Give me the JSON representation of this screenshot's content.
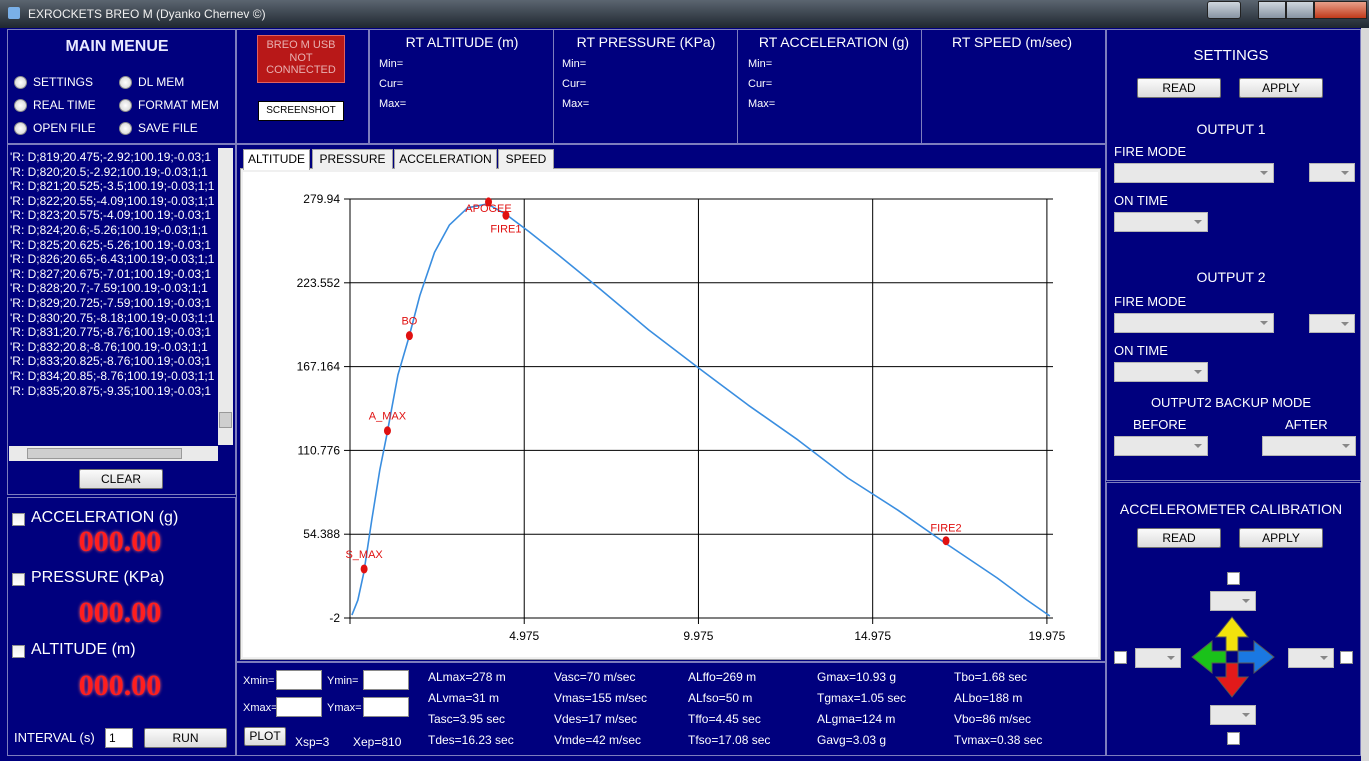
{
  "title_bar": {
    "title": "EXROCKETS BREO M   (Dyanko Chernev ©)"
  },
  "main_menu": {
    "title": "MAIN MENUE",
    "options": [
      "SETTINGS",
      "DL MEM",
      "REAL TIME",
      "FORMAT MEM",
      "OPEN FILE",
      "SAVE FILE"
    ]
  },
  "device": {
    "status": "BREO M USB NOT CONNECTED",
    "screenshot_button": "SCREENSHOT"
  },
  "realtime": [
    {
      "title": "RT ALTITUDE (m)",
      "fields": [
        "Min=",
        "Cur=",
        "Max="
      ]
    },
    {
      "title": "RT PRESSURE (KPa)",
      "fields": [
        "Min=",
        "Cur=",
        "Max="
      ]
    },
    {
      "title": "RT ACCELERATION (g)",
      "fields": [
        "Min=",
        "Cur=",
        "Max="
      ]
    },
    {
      "title": "RT SPEED (m/sec)"
    }
  ],
  "log": {
    "lines": [
      "'R: D;819;20.475;-2.92;100.19;-0.03;1",
      "'R: D;820;20.5;-2.92;100.19;-0.03;1;1",
      "'R: D;821;20.525;-3.5;100.19;-0.03;1;1",
      "'R: D;822;20.55;-4.09;100.19;-0.03;1;1",
      "'R: D;823;20.575;-4.09;100.19;-0.03;1",
      "'R: D;824;20.6;-5.26;100.19;-0.03;1;1",
      "'R: D;825;20.625;-5.26;100.19;-0.03;1",
      "'R: D;826;20.65;-6.43;100.19;-0.03;1;1",
      "'R: D;827;20.675;-7.01;100.19;-0.03;1",
      "'R: D;828;20.7;-7.59;100.19;-0.03;1;1",
      "'R: D;829;20.725;-7.59;100.19;-0.03;1",
      "'R: D;830;20.75;-8.18;100.19;-0.03;1;1",
      "'R: D;831;20.775;-8.76;100.19;-0.03;1",
      "'R: D;832;20.8;-8.76;100.19;-0.03;1;1",
      "'R: D;833;20.825;-8.76;100.19;-0.03;1",
      "'R: D;834;20.85;-8.76;100.19;-0.03;1;1",
      "'R: D;835;20.875;-9.35;100.19;-0.03;1"
    ],
    "clear_button": "CLEAR"
  },
  "gauges": [
    {
      "label": "ACCELERATION (g)",
      "value": "000.00"
    },
    {
      "label": "PRESSURE (KPa)",
      "value": "000.00"
    },
    {
      "label": "ALTITUDE (m)",
      "value": "000.00"
    }
  ],
  "interval": {
    "label": "INTERVAL (s)",
    "value": 1,
    "run_button": "RUN"
  },
  "tabs": [
    "ALTITUDE",
    "PRESSURE",
    "ACCELERATION",
    "SPEED"
  ],
  "chart_data": {
    "type": "line",
    "color": "#3a8ee0",
    "x": [
      0.03,
      0.2,
      0.37,
      0.6,
      0.83,
      1.03,
      1.35,
      1.66,
      1.98,
      2.4,
      2.83,
      3.35,
      3.92,
      4.43,
      5.12,
      5.97,
      7.12,
      8.55,
      9.98,
      11.4,
      12.83,
      14.26,
      15.69,
      16.97,
      18.55,
      19.4,
      20.06
    ],
    "values": [
      0,
      10,
      28.3,
      64,
      97.6,
      121,
      161.5,
      186.4,
      215,
      244,
      262.5,
      274,
      276.6,
      270,
      257.8,
      242,
      220,
      191.8,
      166.2,
      141.3,
      117.8,
      92.2,
      70.7,
      49.8,
      24.9,
      10.1,
      -0.65
    ],
    "events": [
      {
        "label": "S_MAX",
        "x": 0.38,
        "y": 31
      },
      {
        "label": "A_MAX",
        "x": 1.05,
        "y": 124
      },
      {
        "label": "BO",
        "x": 1.68,
        "y": 188
      },
      {
        "label": "APOGEE",
        "x": 3.95,
        "y": 278
      },
      {
        "label": "FIRE1",
        "x": 4.45,
        "y": 269
      },
      {
        "label": "FIRE2",
        "x": 17.08,
        "y": 50
      }
    ],
    "event_color": "#e01010",
    "xlim": [
      -0.025,
      20.15
    ],
    "xticks": [
      4.975,
      9.975,
      14.975,
      19.975
    ],
    "ylim": [
      -2,
      279.94
    ],
    "yticks": [
      -2,
      54.388,
      110.776,
      167.164,
      223.552,
      279.94
    ],
    "grid": true
  },
  "plot_controls": {
    "xmin_label": "Xmin=",
    "ymin_label": "Ymin=",
    "xmax_label": "Xmax=",
    "ymax_label": "Ymax=",
    "plot_button": "PLOT",
    "xsp": "Xsp=3",
    "xep": "Xep=810"
  },
  "stats": [
    [
      "ALmax=278 m",
      "ALvma=31 m",
      "Tasc=3.95 sec",
      "Tdes=16.23 sec"
    ],
    [
      "Vasc=70 m/sec",
      "Vmas=155 m/sec",
      "Vdes=17 m/sec",
      "Vmde=42 m/sec"
    ],
    [
      "ALffo=269 m",
      "ALfso=50 m",
      "Tffo=4.45 sec",
      "Tfso=17.08 sec"
    ],
    [
      "Gmax=10.93 g",
      "Tgmax=1.05 sec",
      "ALgma=124 m",
      "Gavg=3.03 g"
    ],
    [
      "Tbo=1.68 sec",
      "ALbo=188 m",
      "Vbo=86 m/sec",
      "Tvmax=0.38 sec"
    ]
  ],
  "settings": {
    "title": "SETTINGS",
    "read_button": "READ",
    "apply_button": "APPLY",
    "output1": {
      "title": "OUTPUT 1",
      "fire_mode": "FIRE MODE",
      "on_time": "ON TIME"
    },
    "output2": {
      "title": "OUTPUT 2",
      "fire_mode": "FIRE MODE",
      "on_time": "ON TIME"
    },
    "backup": {
      "title": "OUTPUT2 BACKUP MODE",
      "before": "BEFORE",
      "after": "AFTER"
    }
  },
  "calibration": {
    "title": "ACCELEROMETER CALIBRATION",
    "read_button": "READ",
    "apply_button": "APPLY"
  }
}
